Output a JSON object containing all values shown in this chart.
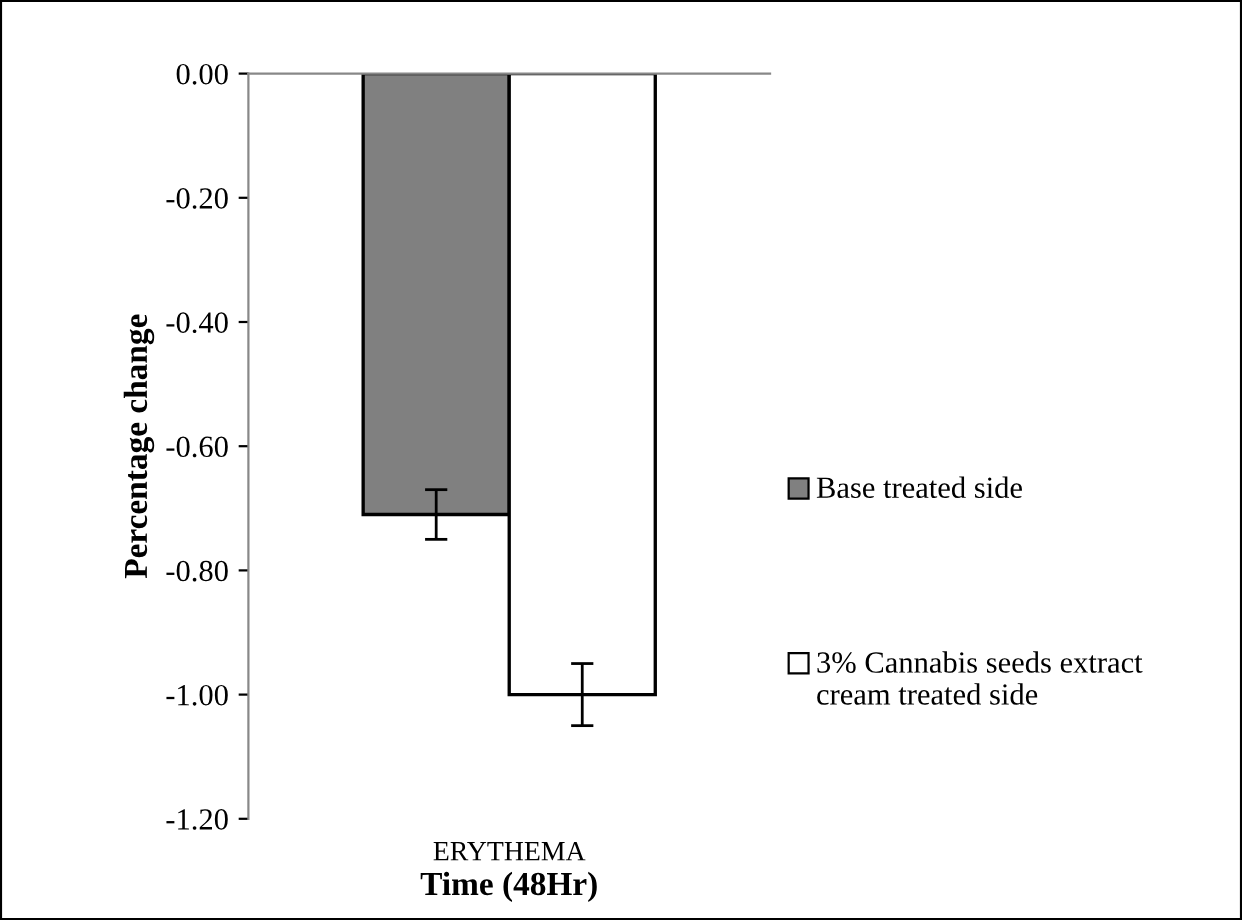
{
  "chart_data": {
    "type": "bar",
    "categories": [
      "ERYTHEMA"
    ],
    "xlabel": "Time (48Hr)",
    "ylabel": "Percentage change",
    "series": [
      {
        "name": "Base treated side",
        "color": "#808080",
        "values": [
          -0.71
        ],
        "errors": [
          0.04
        ]
      },
      {
        "name": "3% Cannabis seeds extract cream treated side",
        "color": "#ffffff",
        "values": [
          -1.0
        ],
        "errors": [
          0.05
        ]
      }
    ],
    "ylim": [
      -1.2,
      0
    ],
    "yticks": [
      {
        "value": 0,
        "label": "0.00"
      },
      {
        "value": -0.2,
        "label": "-0.20"
      },
      {
        "value": -0.4,
        "label": "-0.40"
      },
      {
        "value": -0.6,
        "label": "-0.60"
      },
      {
        "value": -0.8,
        "label": "-0.80"
      },
      {
        "value": -1.0,
        "label": "-1.00"
      },
      {
        "value": -1.2,
        "label": "-1.20"
      }
    ],
    "grid": false,
    "legend": "right"
  }
}
